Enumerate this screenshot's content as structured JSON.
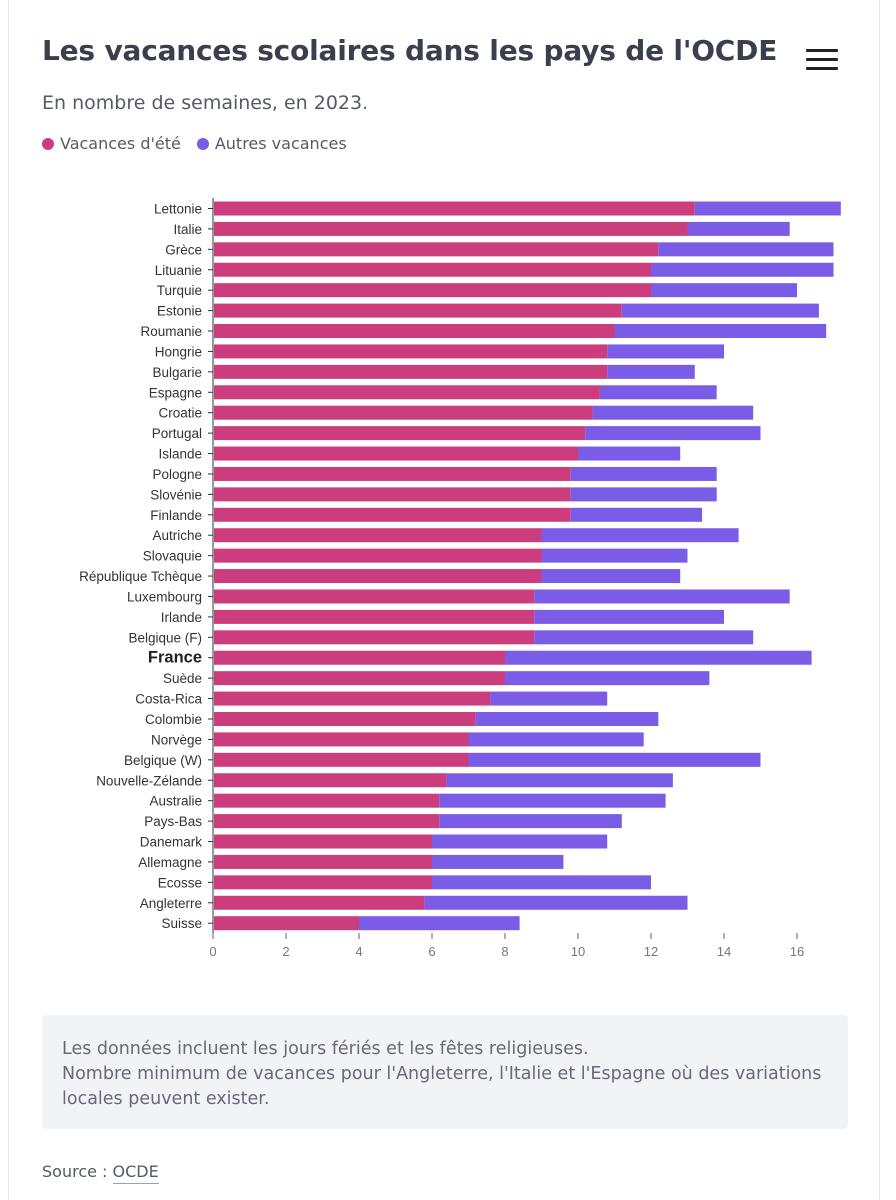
{
  "header": {
    "title": "Les vacances scolaires dans les pays de l'OCDE",
    "subtitle": "En nombre de semaines, en 2023.",
    "menu_icon": "hamburger-menu-icon"
  },
  "legend": {
    "items": [
      {
        "label": "Vacances d'été",
        "color": "#cc3d7d"
      },
      {
        "label": "Autres vacances",
        "color": "#7b5ce6"
      }
    ]
  },
  "chart_data": {
    "type": "bar",
    "orientation": "horizontal",
    "stacked": true,
    "title": "Les vacances scolaires dans les pays de l'OCDE",
    "xlabel": "",
    "ylabel": "",
    "xlim": [
      0,
      17.2
    ],
    "xticks": [
      0,
      2,
      4,
      6,
      8,
      10,
      12,
      14,
      16
    ],
    "highlight": "France",
    "categories": [
      "Lettonie",
      "Italie",
      "Grèce",
      "Lituanie",
      "Turquie",
      "Estonie",
      "Roumanie",
      "Hongrie",
      "Bulgarie",
      "Espagne",
      "Croatie",
      "Portugal",
      "Islande",
      "Pologne",
      "Slovénie",
      "Finlande",
      "Autriche",
      "Slovaquie",
      "République Tchèque",
      "Luxembourg",
      "Irlande",
      "Belgique (F)",
      "France",
      "Suède",
      "Costa-Rica",
      "Colombie",
      "Norvège",
      "Belgique (W)",
      "Nouvelle-Zélande",
      "Australie",
      "Pays-Bas",
      "Danemark",
      "Allemagne",
      "Ecosse",
      "Angleterre",
      "Suisse"
    ],
    "series": [
      {
        "name": "Vacances d'été",
        "color": "#cc3d7d",
        "values": [
          13.2,
          13,
          12.2,
          12,
          12,
          11.2,
          11,
          10.8,
          10.8,
          10.6,
          10.4,
          10.2,
          10,
          9.8,
          9.8,
          9.8,
          9,
          9,
          9,
          8.8,
          8.8,
          8.8,
          8,
          8,
          7.6,
          7.2,
          7,
          7,
          6.4,
          6.2,
          6.2,
          6,
          6,
          6,
          5.8,
          4
        ]
      },
      {
        "name": "Autres vacances",
        "color": "#7b5ce6",
        "values": [
          4,
          2.8,
          4.8,
          5,
          4,
          5.4,
          5.8,
          3.2,
          2.4,
          3.2,
          4.4,
          4.8,
          2.8,
          4,
          4,
          3.6,
          5.4,
          4,
          3.8,
          7,
          5.2,
          6,
          8.4,
          5.6,
          3.2,
          5,
          4.8,
          8,
          6.2,
          6.2,
          5,
          4.8,
          3.6,
          6,
          7.2,
          4.4
        ]
      }
    ]
  },
  "note": {
    "lines": [
      "Les données incluent les jours fériés et les fêtes religieuses.",
      "Nombre minimum de vacances pour l'Angleterre, l'Italie et l'Espagne où des variations",
      "locales peuvent exister."
    ]
  },
  "source": {
    "label": "Source :",
    "link": "OCDE"
  }
}
